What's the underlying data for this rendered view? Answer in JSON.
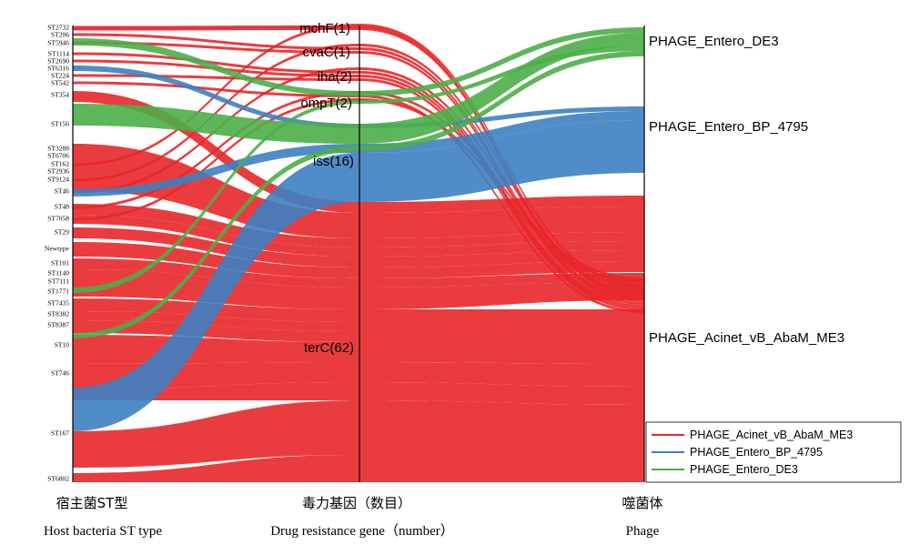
{
  "chart_data": {
    "type": "parallel-sets",
    "axes": [
      {
        "id": "st",
        "title_cn": "宿主菌ST型",
        "title_en": "Host bacteria ST type"
      },
      {
        "id": "gene",
        "title_cn": "毒力基因（数目）",
        "title_en": "Drug resistance gene（number）"
      },
      {
        "id": "phage",
        "title_cn": "噬菌体",
        "title_en": "Phage"
      }
    ],
    "st_types": [
      "ST2732",
      "ST206",
      "ST5946",
      "ST1114",
      "ST2690",
      "ST6316",
      "ST224",
      "ST542",
      "ST354",
      "ST156",
      "ST3288",
      "ST6706",
      "ST162",
      "ST2936",
      "ST9124",
      "ST46",
      "ST48",
      "ST7058",
      "ST29",
      "Newtype",
      "ST101",
      "ST1140",
      "ST7111",
      "ST1771",
      "ST7435",
      "ST8382",
      "ST8387",
      "ST10",
      "ST746",
      "ST167",
      "ST6802"
    ],
    "genes": [
      {
        "label": "mchF(1)",
        "name": "mchF",
        "count": 1
      },
      {
        "label": "cvaC(1)",
        "name": "cvaC",
        "count": 1
      },
      {
        "label": "iha(2)",
        "name": "iha",
        "count": 2
      },
      {
        "label": "ompT(2)",
        "name": "ompT",
        "count": 2
      },
      {
        "label": "iss(16)",
        "name": "iss",
        "count": 16
      },
      {
        "label": "terC(62)",
        "name": "terC",
        "count": 62
      }
    ],
    "phages": [
      "PHAGE_Entero_DE3",
      "PHAGE_Entero_BP_4795",
      "PHAGE_Acinet_vB_AbaM_ME3"
    ],
    "legend": [
      {
        "name": "PHAGE_Acinet_vB_AbaM_ME3",
        "color": "#e8272a"
      },
      {
        "name": "PHAGE_Entero_BP_4795",
        "color": "#3d7fc1"
      },
      {
        "name": "PHAGE_Entero_DE3",
        "color": "#4cae49"
      }
    ],
    "colors": {
      "ME3": "#e8272a",
      "BP": "#3d7fc1",
      "DE3": "#4cae49"
    }
  }
}
